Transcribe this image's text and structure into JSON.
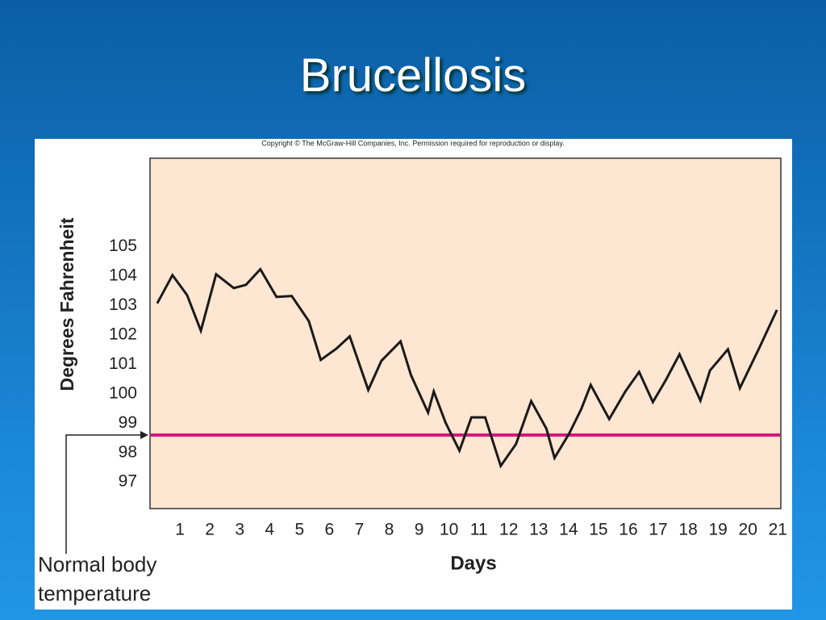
{
  "slide_title": "Brucellosis",
  "copyright": "Copyright © The McGraw-Hill Companies, Inc. Permission required for reproduction or display.",
  "chart_data": {
    "type": "line",
    "y_label": "Degrees Fahrenheit",
    "x_label": "Days",
    "x": [
      0.24,
      0.75,
      1.24,
      1.7,
      2.21,
      2.8,
      3.21,
      3.69,
      4.23,
      4.74,
      5.31,
      5.71,
      6.23,
      6.68,
      7.3,
      7.74,
      8.38,
      8.73,
      9.3,
      9.49,
      9.89,
      10.35,
      10.75,
      11.21,
      11.73,
      12.24,
      12.75,
      13.26,
      13.53,
      14.02,
      14.42,
      14.74,
      15.36,
      15.9,
      16.36,
      16.82,
      17.25,
      17.71,
      18.41,
      18.73,
      19.33,
      19.73,
      20.38,
      20.97
    ],
    "series": [
      {
        "color": "#1a1a1a",
        "values": [
          103.07,
          104.03,
          103.35,
          102.14,
          104.06,
          103.59,
          103.7,
          104.23,
          103.29,
          103.32,
          102.47,
          101.15,
          101.53,
          101.95,
          100.13,
          101.12,
          101.78,
          100.63,
          99.36,
          100.08,
          99.01,
          98.07,
          99.2,
          99.2,
          97.55,
          98.29,
          99.75,
          98.81,
          97.82,
          98.65,
          99.47,
          100.3,
          99.14,
          100.08,
          100.74,
          99.72,
          100.46,
          101.34,
          99.77,
          100.79,
          101.51,
          100.19,
          101.56,
          102.85
        ]
      }
    ],
    "xlim": [
      0,
      21.1
    ],
    "ylim": [
      96.1,
      108
    ],
    "xticks": [
      1,
      2,
      3,
      4,
      5,
      6,
      7,
      8,
      9,
      10,
      11,
      12,
      13,
      14,
      15,
      16,
      17,
      18,
      19,
      20,
      21
    ],
    "yticks": [
      97,
      98,
      99,
      100,
      101,
      102,
      103,
      104,
      105
    ],
    "reference_line": {
      "value": 98.6,
      "color": "#d6147f",
      "label_lines": [
        "Normal body",
        "temperature"
      ]
    },
    "plot_background": "#fde6d2"
  }
}
